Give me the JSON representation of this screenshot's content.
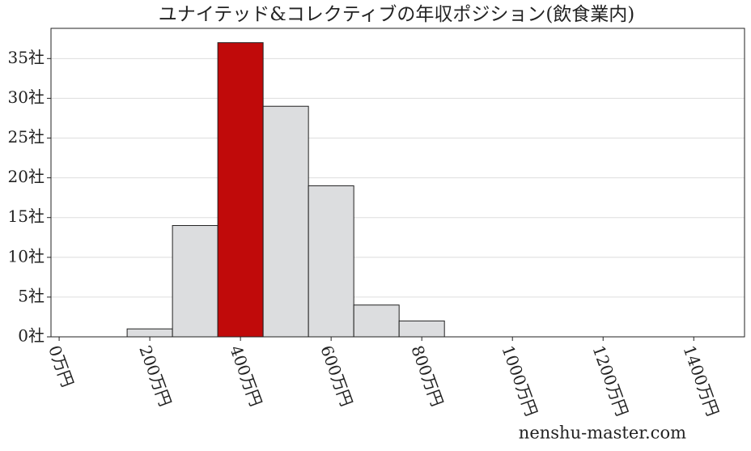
{
  "chart_data": {
    "type": "histogram",
    "title": "ユナイテッド&コレクティブの年収ポジション(飲食業内)",
    "bins": [
      150,
      250,
      350,
      450,
      550,
      650,
      750,
      850
    ],
    "values": [
      1,
      14,
      37,
      29,
      19,
      4,
      2
    ],
    "colors": [
      "#dcdddf",
      "#dcdddf",
      "#c00a0a",
      "#dcdddf",
      "#dcdddf",
      "#dcdddf",
      "#dcdddf"
    ],
    "edgecolor": "#222222",
    "xlim": [
      -18,
      1512
    ],
    "ylim": [
      0,
      38.8
    ],
    "xticks": [
      {
        "value": 0,
        "label": "0万円"
      },
      {
        "value": 200,
        "label": "200万円"
      },
      {
        "value": 400,
        "label": "400万円"
      },
      {
        "value": 600,
        "label": "600万円"
      },
      {
        "value": 800,
        "label": "800万円"
      },
      {
        "value": 1000,
        "label": "1000万円"
      },
      {
        "value": 1200,
        "label": "1200万円"
      },
      {
        "value": 1400,
        "label": "1400万円"
      }
    ],
    "yticks": [
      {
        "value": 0,
        "label": "0社"
      },
      {
        "value": 5,
        "label": "5社"
      },
      {
        "value": 10,
        "label": "10社"
      },
      {
        "value": 15,
        "label": "15社"
      },
      {
        "value": 20,
        "label": "20社"
      },
      {
        "value": 25,
        "label": "25社"
      },
      {
        "value": 30,
        "label": "30社"
      },
      {
        "value": 35,
        "label": "35社"
      }
    ],
    "grid": true,
    "watermark": "nenshu-master.com"
  }
}
